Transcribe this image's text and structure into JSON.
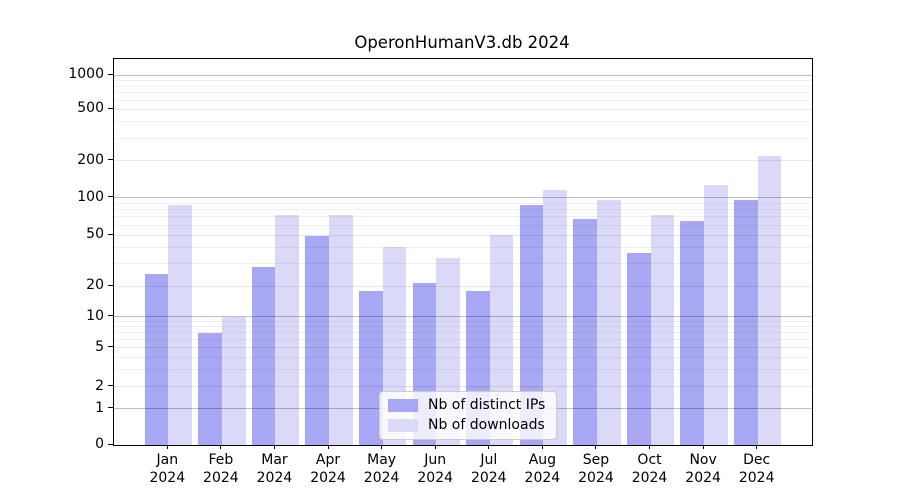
{
  "title": "OperonHumanV3.db 2024",
  "chart_data": {
    "type": "bar",
    "title": "OperonHumanV3.db 2024",
    "categories": [
      "Jan",
      "Feb",
      "Mar",
      "Apr",
      "May",
      "Jun",
      "Jul",
      "Aug",
      "Sep",
      "Oct",
      "Nov",
      "Dec"
    ],
    "year_label": "2024",
    "series": [
      {
        "name": "Nb of distinct IPs",
        "color": "#a7a7f3",
        "values": [
          25,
          7,
          28,
          49,
          18,
          21,
          18,
          88,
          67,
          36,
          65,
          96
        ]
      },
      {
        "name": "Nb of downloads",
        "color": "#dadaf8",
        "values": [
          88,
          10,
          73,
          73,
          40,
          33,
          50,
          115,
          95,
          73,
          128,
          220
        ]
      }
    ],
    "yscale": "symlog",
    "yticks": [
      0,
      1,
      2,
      5,
      10,
      20,
      50,
      100,
      200,
      500,
      1000
    ],
    "ylim": [
      0,
      1000
    ],
    "grid": true,
    "legend_position": "lower center",
    "axis_color": "#000000",
    "background_color": "#ffffff"
  }
}
